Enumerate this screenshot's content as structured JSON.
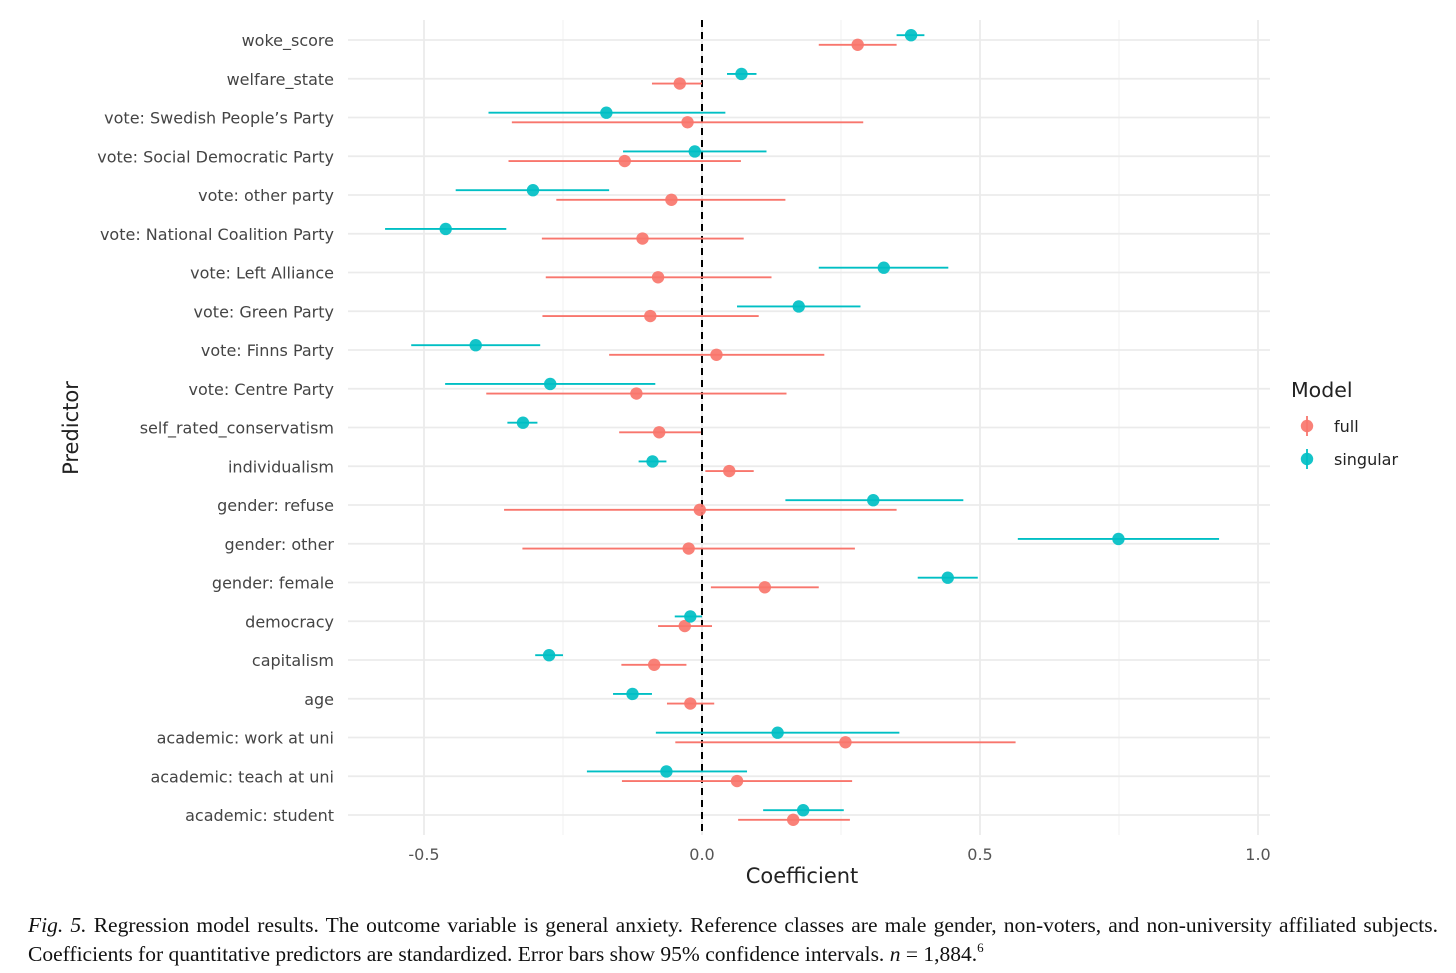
{
  "chart_data": {
    "type": "scatter",
    "subtype": "coefficient-plot-with-error-bars",
    "xlabel": "Coefficient",
    "ylabel": "Predictor",
    "xlim": [
      -0.63,
      1.02
    ],
    "x_ticks": [
      -0.5,
      0.0,
      0.5,
      1.0
    ],
    "x_tick_labels": [
      "-0.5",
      "0.0",
      "0.5",
      "1.0"
    ],
    "reference_line": 0,
    "grid": true,
    "legend": {
      "title": "Model",
      "position": "right"
    },
    "predictors": [
      "woke_score",
      "welfare_state",
      "vote: Swedish People’s Party",
      "vote: Social Democratic Party",
      "vote: other party",
      "vote: National Coalition Party",
      "vote: Left Alliance",
      "vote: Green Party",
      "vote: Finns Party",
      "vote: Centre Party",
      "self_rated_conservatism",
      "individualism",
      "gender: refuse",
      "gender: other",
      "gender: female",
      "democracy",
      "capitalism",
      "age",
      "academic: work at uni",
      "academic: teach at uni",
      "academic: student"
    ],
    "series": [
      {
        "name": "full",
        "color": "#F8766D",
        "estimates": [
          0.28,
          -0.04,
          -0.026,
          -0.139,
          -0.055,
          -0.107,
          -0.079,
          -0.093,
          0.026,
          -0.118,
          -0.077,
          0.049,
          -0.004,
          -0.024,
          0.113,
          -0.031,
          -0.086,
          -0.021,
          0.258,
          0.063,
          0.164
        ],
        "ci_low": [
          0.21,
          -0.09,
          -0.342,
          -0.348,
          -0.262,
          -0.288,
          -0.281,
          -0.287,
          -0.167,
          -0.388,
          -0.149,
          0.006,
          -0.356,
          -0.323,
          0.016,
          -0.079,
          -0.145,
          -0.063,
          -0.048,
          -0.144,
          0.065
        ],
        "ci_high": [
          0.35,
          0.0,
          0.29,
          0.07,
          0.15,
          0.075,
          0.125,
          0.102,
          0.22,
          0.152,
          -0.002,
          0.093,
          0.35,
          0.275,
          0.21,
          0.018,
          -0.028,
          0.022,
          0.564,
          0.27,
          0.266
        ]
      },
      {
        "name": "singular",
        "color": "#00BFC4",
        "estimates": [
          0.376,
          0.071,
          -0.172,
          -0.013,
          -0.304,
          -0.461,
          0.327,
          0.174,
          -0.407,
          -0.273,
          -0.322,
          -0.089,
          0.308,
          0.749,
          0.442,
          -0.021,
          -0.275,
          -0.125,
          0.136,
          -0.064,
          0.182
        ],
        "ci_low": [
          0.35,
          0.045,
          -0.384,
          -0.142,
          -0.443,
          -0.57,
          0.21,
          0.063,
          -0.523,
          -0.462,
          -0.35,
          -0.114,
          0.15,
          0.568,
          0.388,
          -0.049,
          -0.3,
          -0.16,
          -0.083,
          -0.207,
          0.11
        ],
        "ci_high": [
          0.4,
          0.098,
          0.042,
          0.116,
          -0.167,
          -0.352,
          0.443,
          0.285,
          -0.291,
          -0.084,
          -0.296,
          -0.064,
          0.47,
          0.93,
          0.496,
          0.0,
          -0.25,
          -0.09,
          0.355,
          0.081,
          0.255
        ]
      }
    ]
  },
  "caption": {
    "fig_label": "Fig. 5.",
    "text_before_n": "Regression model results. The outcome variable is general anxiety. Reference classes are male gender, non-voters, and non-university affiliated subjects. Coefficients for quantitative predictors are standardized. Error bars show 95% confidence intervals.",
    "n_symbol": "n",
    "n_value": "= 1,884.",
    "footnote": "6"
  }
}
